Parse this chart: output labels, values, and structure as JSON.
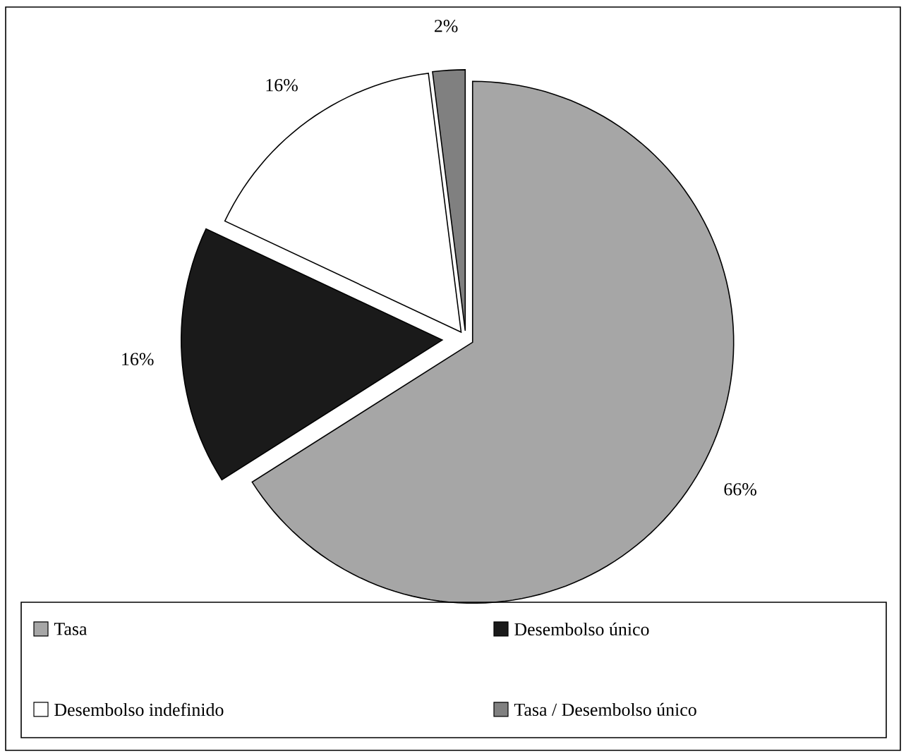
{
  "chart_data": {
    "type": "pie",
    "categories": [
      "Tasa",
      "Desembolso único",
      "Desembolso indefinido",
      "Tasa / Desembolso único"
    ],
    "values": [
      66,
      16,
      16,
      2
    ],
    "colors": [
      "#a6a6a6",
      "#1a1a1a",
      "#ffffff",
      "#808080"
    ],
    "value_labels": [
      "66%",
      "16%",
      "16%",
      "2%"
    ],
    "legend": "bottom"
  }
}
